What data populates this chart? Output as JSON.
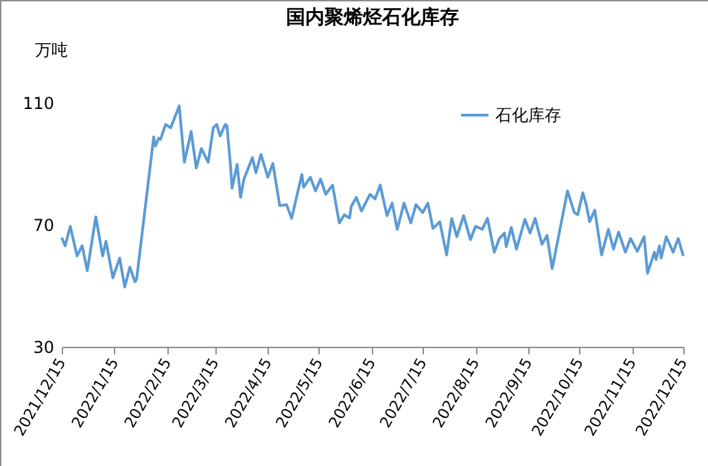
{
  "chart_data": {
    "type": "line",
    "title": "国内聚烯烃石化库存",
    "ylabel": "万吨",
    "x": [
      "2021-12-15",
      "2021-12-17",
      "2021-12-20",
      "2021-12-24",
      "2021-12-27",
      "2021-12-30",
      "2022-01-04",
      "2022-01-08",
      "2022-01-10",
      "2022-01-14",
      "2022-01-18",
      "2022-01-21",
      "2022-01-24",
      "2022-01-27",
      "2022-01-28",
      "2022-02-07",
      "2022-02-08",
      "2022-02-10",
      "2022-02-11",
      "2022-02-14",
      "2022-02-17",
      "2022-02-22",
      "2022-02-25",
      "2022-03-01",
      "2022-03-04",
      "2022-03-07",
      "2022-03-11",
      "2022-03-14",
      "2022-03-16",
      "2022-03-18",
      "2022-03-21",
      "2022-03-22",
      "2022-03-24",
      "2022-03-25",
      "2022-03-28",
      "2022-03-30",
      "2022-04-01",
      "2022-04-06",
      "2022-04-08",
      "2022-04-11",
      "2022-04-15",
      "2022-04-18",
      "2022-04-22",
      "2022-04-26",
      "2022-04-29",
      "2022-05-05",
      "2022-05-06",
      "2022-05-10",
      "2022-05-13",
      "2022-05-16",
      "2022-05-19",
      "2022-05-23",
      "2022-05-27",
      "2022-05-30",
      "2022-06-02",
      "2022-06-03",
      "2022-06-06",
      "2022-06-09",
      "2022-06-14",
      "2022-06-17",
      "2022-06-20",
      "2022-06-24",
      "2022-06-27",
      "2022-06-30",
      "2022-07-04",
      "2022-07-08",
      "2022-07-11",
      "2022-07-15",
      "2022-07-18",
      "2022-07-21",
      "2022-07-25",
      "2022-07-29",
      "2022-08-01",
      "2022-08-04",
      "2022-08-08",
      "2022-08-12",
      "2022-08-15",
      "2022-08-19",
      "2022-08-22",
      "2022-08-26",
      "2022-08-29",
      "2022-09-01",
      "2022-09-02",
      "2022-09-05",
      "2022-09-08",
      "2022-09-13",
      "2022-09-16",
      "2022-09-19",
      "2022-09-23",
      "2022-09-26",
      "2022-09-29",
      "2022-10-08",
      "2022-10-12",
      "2022-10-14",
      "2022-10-17",
      "2022-10-19",
      "2022-10-21",
      "2022-10-24",
      "2022-10-28",
      "2022-11-01",
      "2022-11-04",
      "2022-11-07",
      "2022-11-11",
      "2022-11-14",
      "2022-11-18",
      "2022-11-22",
      "2022-11-24",
      "2022-11-28",
      "2022-11-29",
      "2022-12-01",
      "2022-12-02",
      "2022-12-05",
      "2022-12-09",
      "2022-12-12",
      "2022-12-15"
    ],
    "series": [
      {
        "name": "石化库存",
        "color": "#5b9bd5",
        "values": [
          65.8,
          63.1,
          69.5,
          59.8,
          63.1,
          54.9,
          72.6,
          59.8,
          64.6,
          52.6,
          59.1,
          49.6,
          56.1,
          51.3,
          52.3,
          98.8,
          95.8,
          98.4,
          98.0,
          102.9,
          101.8,
          109.0,
          90.5,
          100.6,
          88.6,
          95.0,
          90.5,
          101.8,
          102.9,
          99.1,
          102.9,
          102.5,
          90.1,
          82.0,
          89.8,
          79.0,
          85.0,
          92.0,
          87.1,
          93.1,
          85.6,
          90.1,
          76.3,
          76.6,
          72.1,
          86.5,
          82.3,
          85.6,
          81.1,
          85.0,
          80.0,
          83.0,
          70.6,
          73.3,
          72.2,
          76.0,
          79.0,
          74.5,
          80.0,
          78.5,
          83.0,
          73.0,
          77.1,
          68.5,
          77.1,
          70.6,
          76.6,
          74.0,
          77.1,
          68.8,
          71.0,
          60.1,
          72.1,
          66.1,
          73.0,
          65.1,
          69.5,
          68.5,
          72.1,
          61.0,
          65.5,
          67.3,
          62.8,
          69.1,
          62.0,
          71.8,
          67.3,
          72.1,
          63.6,
          66.5,
          55.6,
          81.1,
          74.0,
          73.3,
          80.5,
          76.6,
          71.0,
          74.8,
          60.1,
          68.5,
          62.0,
          67.6,
          61.0,
          65.5,
          61.3,
          66.1,
          54.1,
          61.0,
          58.6,
          63.1,
          59.1,
          66.1,
          61.0,
          65.5,
          59.8
        ]
      }
    ],
    "xlim": [
      "2021-12-15",
      "2022-12-15"
    ],
    "xticks": [
      {
        "value": "2021-12-15",
        "label": "2021/12/15"
      },
      {
        "value": "2022-01-15",
        "label": "2022/1/15"
      },
      {
        "value": "2022-02-15",
        "label": "2022/2/15"
      },
      {
        "value": "2022-03-15",
        "label": "2022/3/15"
      },
      {
        "value": "2022-04-15",
        "label": "2022/4/15"
      },
      {
        "value": "2022-05-15",
        "label": "2022/5/15"
      },
      {
        "value": "2022-06-15",
        "label": "2022/6/15"
      },
      {
        "value": "2022-07-15",
        "label": "2022/7/15"
      },
      {
        "value": "2022-08-15",
        "label": "2022/8/15"
      },
      {
        "value": "2022-09-15",
        "label": "2022/9/15"
      },
      {
        "value": "2022-10-15",
        "label": "2022/10/15"
      },
      {
        "value": "2022-11-15",
        "label": "2022/11/15"
      },
      {
        "value": "2022-12-15",
        "label": "2022/12/15"
      }
    ],
    "ylim": [
      30,
      110
    ],
    "yticks": [
      30,
      70,
      110
    ],
    "grid": false,
    "legend": "top right",
    "marker": "none",
    "line_style": "solid"
  }
}
